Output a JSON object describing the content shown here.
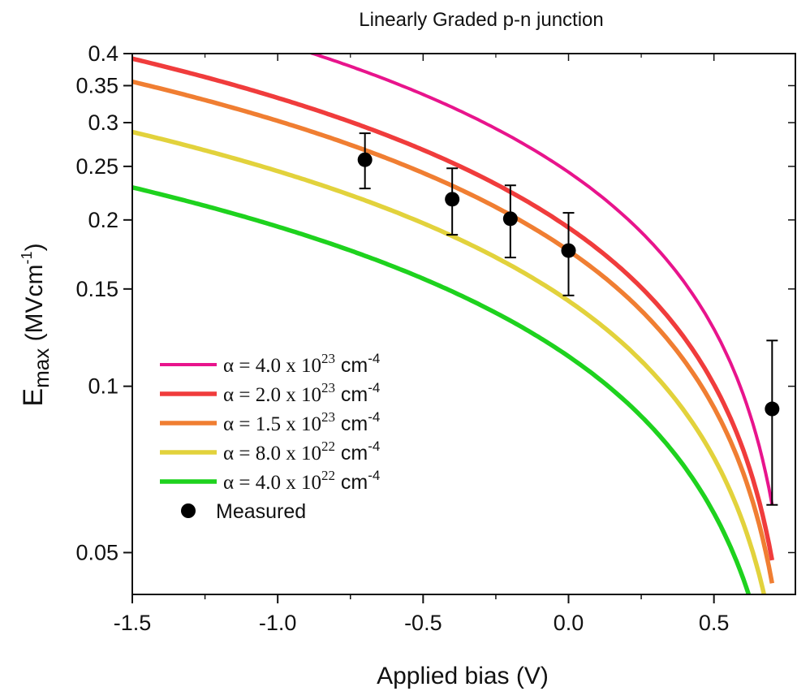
{
  "chart_data": {
    "type": "line",
    "title": "Linearly Graded p-n junction",
    "xlabel": "Applied bias (V)",
    "ylabel": {
      "main": "E",
      "sub": "max",
      "unit_open": " (MVcm",
      "unit_sup": "-1",
      "unit_close": ")"
    },
    "xlim": [
      -1.5,
      0.78
    ],
    "ylim": [
      0.042,
      0.4
    ],
    "y_scale": "log",
    "x_ticks": [
      -1.5,
      -1.0,
      -0.5,
      0.0,
      0.5
    ],
    "x_tick_labels": [
      "-1.5",
      "-1.0",
      "-0.5",
      "0.0",
      "0.5"
    ],
    "y_ticks": [
      0.05,
      0.1,
      0.15,
      0.2,
      0.25,
      0.3,
      0.35,
      0.4
    ],
    "y_tick_labels": [
      "0.05",
      "0.1",
      "0.15",
      "0.2",
      "0.25",
      "0.3",
      "0.35",
      "0.4"
    ],
    "grid": false,
    "legend_position": "bottom-left",
    "built_in_potential_V": 0.8,
    "series": [
      {
        "name_prefix": "α = 4.0 x 10",
        "name_exp": "23",
        "name_unit": " cm",
        "name_unit_exp": "-4",
        "color": "#e8148c",
        "alpha_cm4": 4e+23,
        "x_start": -1.5,
        "x_end": 0.7
      },
      {
        "name_prefix": "α = 2.0 x 10",
        "name_exp": "23",
        "name_unit": " cm",
        "name_unit_exp": "-4",
        "color": "#f03c3c",
        "alpha_cm4": 2e+23,
        "x_start": -1.5,
        "x_end": 0.7
      },
      {
        "name_prefix": "α = 1.5 x 10",
        "name_exp": "23",
        "name_unit": " cm",
        "name_unit_exp": "-4",
        "color": "#f07e32",
        "alpha_cm4": 1.5e+23,
        "x_start": -1.5,
        "x_end": 0.7
      },
      {
        "name_prefix": "α = 8.0 x 10",
        "name_exp": "22",
        "name_unit": " cm",
        "name_unit_exp": "-4",
        "color": "#e2d23c",
        "alpha_cm4": 8e+22,
        "x_start": -1.5,
        "x_end": 0.7
      },
      {
        "name_prefix": "α = 4.0 x 10",
        "name_exp": "22",
        "name_unit": " cm",
        "name_unit_exp": "-4",
        "color": "#1ed21e",
        "alpha_cm4": 4e+22,
        "x_start": -1.5,
        "x_end": 0.7
      }
    ],
    "measured": {
      "name": "Measured",
      "color": "#000000",
      "points": [
        {
          "x": -0.7,
          "y": 0.257,
          "err_low": 0.228,
          "err_high": 0.287
        },
        {
          "x": -0.4,
          "y": 0.218,
          "err_low": 0.188,
          "err_high": 0.248
        },
        {
          "x": -0.2,
          "y": 0.201,
          "err_low": 0.171,
          "err_high": 0.231
        },
        {
          "x": 0.0,
          "y": 0.176,
          "err_low": 0.146,
          "err_high": 0.206
        },
        {
          "x": 0.7,
          "y": 0.091,
          "err_low": 0.061,
          "err_high": 0.121
        }
      ]
    }
  }
}
